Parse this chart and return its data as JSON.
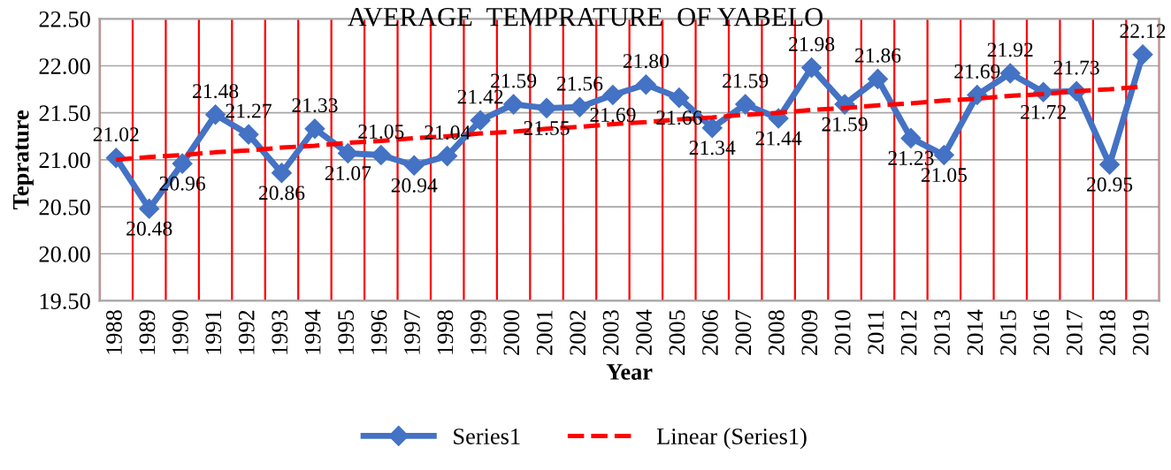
{
  "chart_data": {
    "type": "line",
    "title": "AVERAGE  TEMPRATURE  OF YABELO",
    "xlabel": "Year",
    "ylabel": "Teprature",
    "categories": [
      "1988",
      "1989",
      "1990",
      "1991",
      "1992",
      "1993",
      "1994",
      "1995",
      "1996",
      "1997",
      "1998",
      "1999",
      "2000",
      "2001",
      "2002",
      "2003",
      "2004",
      "2005",
      "2006",
      "2007",
      "2008",
      "2009",
      "2010",
      "2011",
      "2012",
      "2013",
      "2014",
      "2015",
      "2016",
      "2017",
      "2018",
      "2019"
    ],
    "series": [
      {
        "name": "Series1",
        "color": "#4472c4",
        "marker": "diamond",
        "line_style": "solid",
        "values": [
          21.02,
          20.48,
          20.96,
          21.48,
          21.27,
          20.86,
          21.33,
          21.07,
          21.05,
          20.94,
          21.04,
          21.42,
          21.59,
          21.55,
          21.56,
          21.69,
          21.8,
          21.66,
          21.34,
          21.59,
          21.44,
          21.98,
          21.59,
          21.86,
          21.23,
          21.05,
          21.69,
          21.92,
          21.72,
          21.73,
          20.95,
          22.12
        ],
        "value_labels": [
          "21.02",
          "20.48",
          "20.96",
          "21.48",
          "21.27",
          "20.86",
          "21.33",
          "21.07",
          "21.05",
          "20.94",
          "21.04",
          "21.42",
          "21.59",
          "21.55",
          "21.56",
          "21.69",
          "21.80",
          "21.66",
          "21.34",
          "21.59",
          "21.44",
          "21.98",
          "21.59",
          "21.86",
          "21.23",
          "21.05",
          "21.69",
          "21.92",
          "21.72",
          "21.73",
          "20.95",
          "22.12"
        ]
      },
      {
        "name": "Linear (Series1)",
        "color": "#ff0000",
        "marker": "none",
        "line_style": "dashed",
        "values": [
          21.0,
          21.03,
          21.05,
          21.08,
          21.1,
          21.13,
          21.15,
          21.18,
          21.2,
          21.23,
          21.25,
          21.28,
          21.3,
          21.33,
          21.35,
          21.38,
          21.4,
          21.43,
          21.45,
          21.48,
          21.5,
          21.53,
          21.55,
          21.58,
          21.6,
          21.63,
          21.65,
          21.68,
          21.7,
          21.73,
          21.75,
          21.78
        ]
      }
    ],
    "ylim": [
      19.5,
      22.5
    ],
    "yticks": [
      {
        "value": 19.5,
        "label": "19.50"
      },
      {
        "value": 20.0,
        "label": "20.00"
      },
      {
        "value": 20.5,
        "label": "20.50"
      },
      {
        "value": 21.0,
        "label": "21.00"
      },
      {
        "value": 21.5,
        "label": "21.50"
      },
      {
        "value": 22.0,
        "label": "22.00"
      },
      {
        "value": 22.5,
        "label": "22.50"
      }
    ],
    "grid": true,
    "legend": "bottom"
  }
}
